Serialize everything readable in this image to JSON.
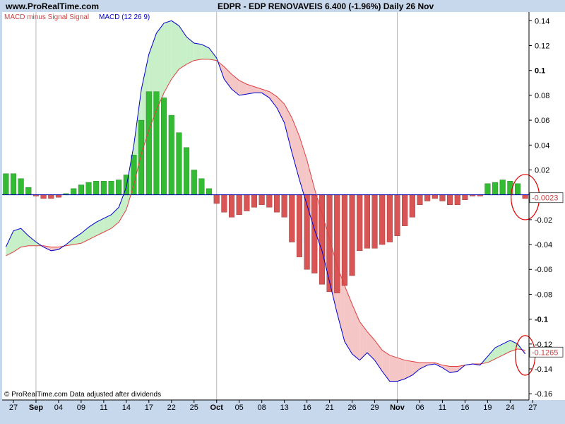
{
  "header": {
    "site": "www.ProRealTime.com",
    "title": "EDPR - EDP RENOVAVEIS    6.400 (-1.96%)    Daily  26 Nov"
  },
  "chart_data": {
    "type": "bar",
    "title": "EDPR - EDP RENOVAVEIS    6.400 (-1.96%)    Daily  26 Nov",
    "legend": [
      {
        "label": "MACD minus Signal Signal",
        "color": "#d04040"
      },
      {
        "label": "MACD (12 26 9)",
        "color": "#0000cc"
      }
    ],
    "footer": "© ProRealTime.com  Data adjusted after dividends",
    "ylim": [
      -0.165,
      0.147
    ],
    "y_ticks": [
      {
        "v": 0.14,
        "label": "0.14",
        "bold": false
      },
      {
        "v": 0.12,
        "label": "0.12",
        "bold": false
      },
      {
        "v": 0.1,
        "label": "0.1",
        "bold": true
      },
      {
        "v": 0.08,
        "label": "0.08",
        "bold": false
      },
      {
        "v": 0.06,
        "label": "0.06",
        "bold": false
      },
      {
        "v": 0.04,
        "label": "0.04",
        "bold": false
      },
      {
        "v": 0.02,
        "label": "0.02",
        "bold": false
      },
      {
        "v": -0.02,
        "label": "-0.02",
        "bold": false
      },
      {
        "v": -0.04,
        "label": "-0.04",
        "bold": false
      },
      {
        "v": -0.06,
        "label": "-0.06",
        "bold": false
      },
      {
        "v": -0.08,
        "label": "-0.08",
        "bold": false
      },
      {
        "v": -0.1,
        "label": "-0.1",
        "bold": true
      },
      {
        "v": -0.12,
        "label": "-0.12",
        "bold": false
      },
      {
        "v": -0.14,
        "label": "-0.14",
        "bold": false
      },
      {
        "v": -0.16,
        "label": "-0.16",
        "bold": false
      }
    ],
    "x_ticks": [
      {
        "i": 1,
        "label": "27",
        "bold": false,
        "sep": false
      },
      {
        "i": 4,
        "label": "Sep",
        "bold": true,
        "sep": true
      },
      {
        "i": 7,
        "label": "04",
        "bold": false,
        "sep": false
      },
      {
        "i": 10,
        "label": "09",
        "bold": false,
        "sep": false
      },
      {
        "i": 13,
        "label": "11",
        "bold": false,
        "sep": false
      },
      {
        "i": 16,
        "label": "14",
        "bold": false,
        "sep": false
      },
      {
        "i": 19,
        "label": "17",
        "bold": false,
        "sep": false
      },
      {
        "i": 22,
        "label": "22",
        "bold": false,
        "sep": false
      },
      {
        "i": 25,
        "label": "25",
        "bold": false,
        "sep": false
      },
      {
        "i": 28,
        "label": "Oct",
        "bold": true,
        "sep": true
      },
      {
        "i": 31,
        "label": "05",
        "bold": false,
        "sep": false
      },
      {
        "i": 34,
        "label": "08",
        "bold": false,
        "sep": false
      },
      {
        "i": 37,
        "label": "13",
        "bold": false,
        "sep": false
      },
      {
        "i": 40,
        "label": "16",
        "bold": false,
        "sep": false
      },
      {
        "i": 43,
        "label": "21",
        "bold": false,
        "sep": false
      },
      {
        "i": 46,
        "label": "26",
        "bold": false,
        "sep": false
      },
      {
        "i": 49,
        "label": "29",
        "bold": false,
        "sep": false
      },
      {
        "i": 52,
        "label": "Nov",
        "bold": true,
        "sep": true
      },
      {
        "i": 55,
        "label": "06",
        "bold": false,
        "sep": false
      },
      {
        "i": 58,
        "label": "11",
        "bold": false,
        "sep": false
      },
      {
        "i": 61,
        "label": "16",
        "bold": false,
        "sep": false
      },
      {
        "i": 64,
        "label": "19",
        "bold": false,
        "sep": false
      },
      {
        "i": 67,
        "label": "24",
        "bold": false,
        "sep": false
      },
      {
        "i": 70,
        "label": "27",
        "bold": false,
        "sep": false
      }
    ],
    "histogram": [
      0.017,
      0.017,
      0.013,
      0.006,
      -0.001,
      -0.003,
      -0.003,
      -0.002,
      0.001,
      0.005,
      0.008,
      0.01,
      0.011,
      0.011,
      0.011,
      0.012,
      0.016,
      0.032,
      0.06,
      0.083,
      0.083,
      0.078,
      0.064,
      0.05,
      0.038,
      0.02,
      0.013,
      0.005,
      -0.007,
      -0.014,
      -0.018,
      -0.016,
      -0.013,
      -0.01,
      -0.008,
      -0.01,
      -0.014,
      -0.018,
      -0.038,
      -0.05,
      -0.06,
      -0.063,
      -0.072,
      -0.078,
      -0.079,
      -0.073,
      -0.065,
      -0.045,
      -0.043,
      -0.043,
      -0.04,
      -0.038,
      -0.033,
      -0.025,
      -0.018,
      -0.008,
      -0.005,
      -0.003,
      -0.005,
      -0.008,
      -0.008,
      -0.004,
      -0.001,
      -0.001,
      0.009,
      0.01,
      0.012,
      0.011,
      0.009,
      -0.003
    ],
    "macd": [
      -0.042,
      -0.029,
      -0.027,
      -0.033,
      -0.038,
      -0.042,
      -0.045,
      -0.044,
      -0.04,
      -0.035,
      -0.031,
      -0.026,
      -0.022,
      -0.019,
      -0.016,
      -0.01,
      0.006,
      0.04,
      0.085,
      0.113,
      0.13,
      0.138,
      0.14,
      0.136,
      0.127,
      0.122,
      0.121,
      0.118,
      0.11,
      0.093,
      0.085,
      0.08,
      0.081,
      0.082,
      0.082,
      0.078,
      0.07,
      0.058,
      0.034,
      0.012,
      -0.008,
      -0.028,
      -0.045,
      -0.07,
      -0.095,
      -0.118,
      -0.128,
      -0.133,
      -0.127,
      -0.133,
      -0.142,
      -0.15,
      -0.15,
      -0.148,
      -0.145,
      -0.14,
      -0.137,
      -0.136,
      -0.139,
      -0.143,
      -0.142,
      -0.137,
      -0.136,
      -0.137,
      -0.13,
      -0.123,
      -0.12,
      -0.117,
      -0.12,
      -0.128
    ],
    "signal": [
      -0.049,
      -0.046,
      -0.042,
      -0.041,
      -0.041,
      -0.041,
      -0.042,
      -0.042,
      -0.041,
      -0.04,
      -0.039,
      -0.036,
      -0.033,
      -0.03,
      -0.027,
      -0.022,
      -0.012,
      0.008,
      0.033,
      0.052,
      0.068,
      0.082,
      0.093,
      0.101,
      0.105,
      0.108,
      0.109,
      0.109,
      0.108,
      0.103,
      0.097,
      0.092,
      0.089,
      0.087,
      0.085,
      0.083,
      0.079,
      0.073,
      0.062,
      0.047,
      0.028,
      0.005,
      -0.015,
      -0.035,
      -0.057,
      -0.073,
      -0.088,
      -0.102,
      -0.11,
      -0.117,
      -0.125,
      -0.129,
      -0.131,
      -0.133,
      -0.134,
      -0.135,
      -0.135,
      -0.135,
      -0.137,
      -0.138,
      -0.138,
      -0.137,
      -0.136,
      -0.136,
      -0.135,
      -0.132,
      -0.129,
      -0.126,
      -0.124,
      -0.125
    ],
    "badges": [
      {
        "label": "-0.0023",
        "v": -0.0023,
        "color": "#d04040"
      },
      {
        "label": "-0.1265",
        "v": -0.1265,
        "color": "#d04040"
      }
    ],
    "colors": {
      "positive": "#33bb33",
      "negative": "#d95555",
      "macd": "#0000cc",
      "signal": "#e04040",
      "fill_up": "#c8f0c8",
      "fill_down": "#f5c6c6",
      "grid": "#b8b8b8",
      "panel": "#ffffff",
      "zero": "#0000aa",
      "annotation": "#e00000"
    }
  }
}
